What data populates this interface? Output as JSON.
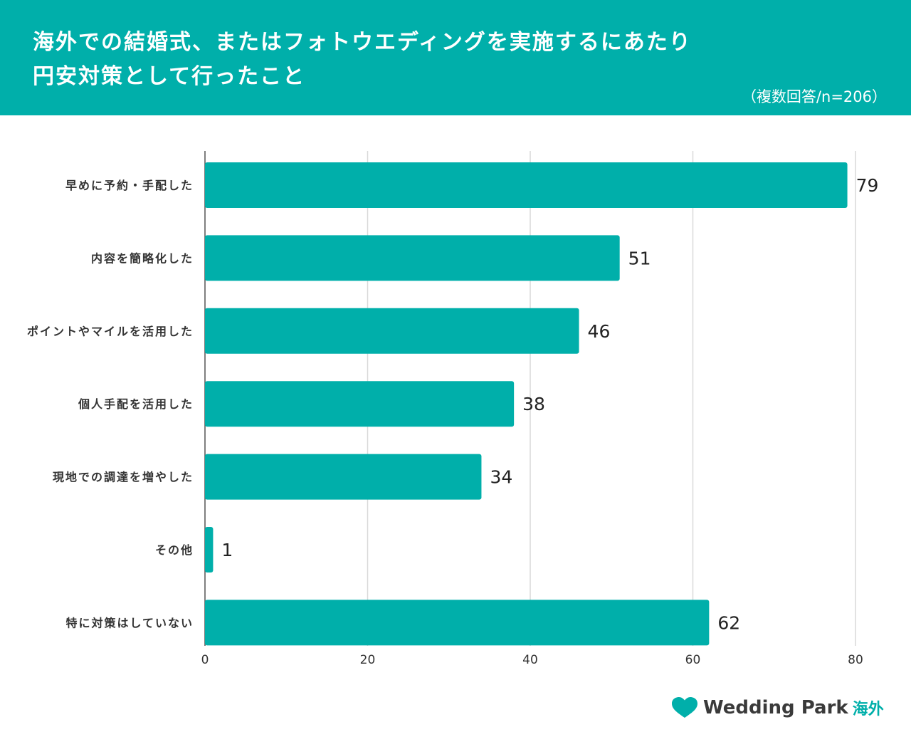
{
  "header": {
    "title_line1": "海外での結婚式、またはフォトウエディングを実施するにあたり",
    "title_line2": "円安対策として行ったこと",
    "subtitle": "（複数回答/n=206）"
  },
  "colors": {
    "header_bg": "#00afaa",
    "bar": "#00afaa",
    "grid": "#d9d9d9",
    "axis": "#555555"
  },
  "chart_data": {
    "type": "bar",
    "orientation": "horizontal",
    "categories": [
      "早めに予約・手配した",
      "内容を簡略化した",
      "ポイントやマイルを活用した",
      "個人手配を活用した",
      "現地での調達を増やした",
      "その他",
      "特に対策はしていない"
    ],
    "values": [
      79,
      51,
      46,
      38,
      34,
      1,
      62
    ],
    "xlim": [
      0,
      80
    ],
    "xticks": [
      0,
      20,
      40,
      60,
      80
    ],
    "grid": true,
    "legend": "none"
  },
  "logo": {
    "text": "Wedding Park",
    "sub": "海外",
    "icon": "heart-icon"
  }
}
